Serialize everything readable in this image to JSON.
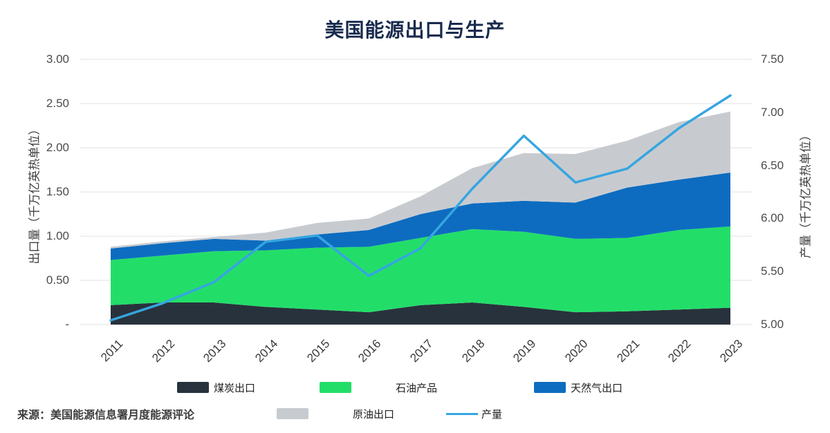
{
  "title": "美国能源出口与生产",
  "source_text": "来源：美国能源信息署月度能源评论",
  "legend": {
    "position": "bottom",
    "items": [
      {
        "label": "煤炭出口",
        "color": "#28323c",
        "type": "box"
      },
      {
        "label": "石油产品",
        "color": "#22de69",
        "type": "box"
      },
      {
        "label": "天然气出口",
        "color": "#0d6cc0",
        "type": "box"
      },
      {
        "label": "原油出口",
        "color": "#c7cbd0",
        "type": "box"
      },
      {
        "label": "产量",
        "color": "#36a5e0",
        "type": "line"
      }
    ]
  },
  "chart_data": {
    "type": "area",
    "subtype": "stacked-area-with-line",
    "title": "美国能源出口与生产",
    "grid": true,
    "categories": [
      2011,
      2012,
      2013,
      2014,
      2015,
      2016,
      2017,
      2018,
      2019,
      2020,
      2021,
      2022,
      2023
    ],
    "stacked_series": [
      {
        "name": "煤炭出口",
        "color": "#28323c",
        "values": [
          0.22,
          0.25,
          0.25,
          0.2,
          0.17,
          0.14,
          0.22,
          0.25,
          0.2,
          0.14,
          0.15,
          0.17,
          0.19
        ]
      },
      {
        "name": "石油产品",
        "color": "#22de69",
        "values": [
          0.51,
          0.53,
          0.58,
          0.64,
          0.7,
          0.74,
          0.76,
          0.83,
          0.85,
          0.83,
          0.83,
          0.9,
          0.92
        ]
      },
      {
        "name": "天然气出口",
        "color": "#0d6cc0",
        "values": [
          0.13,
          0.14,
          0.14,
          0.11,
          0.15,
          0.19,
          0.27,
          0.29,
          0.35,
          0.41,
          0.57,
          0.57,
          0.61
        ]
      },
      {
        "name": "原油出口",
        "color": "#c7cbd0",
        "values": [
          0.02,
          0.02,
          0.02,
          0.09,
          0.13,
          0.13,
          0.2,
          0.4,
          0.54,
          0.55,
          0.53,
          0.65,
          0.69
        ]
      }
    ],
    "line_series": {
      "name": "产量",
      "color": "#36a5e0",
      "axis": "right",
      "values": [
        5.04,
        5.2,
        5.4,
        5.78,
        5.84,
        5.46,
        5.72,
        6.28,
        6.78,
        6.34,
        6.47,
        6.85,
        7.16
      ]
    },
    "left_axis": {
      "label": "出口量（千万亿英热单位）",
      "min": 0,
      "max": 3.0,
      "tick_values": [
        3.0,
        2.5,
        2.0,
        1.5,
        1.0,
        0.5,
        0
      ],
      "tick_labels": [
        "3.00",
        "2.50",
        "2.00",
        "1.50",
        "1.00",
        "0.50",
        "-"
      ]
    },
    "right_axis": {
      "label": "产量（千万亿英热单位）",
      "min": 5.0,
      "max": 7.5,
      "tick_values": [
        7.5,
        7.0,
        6.5,
        6.0,
        5.5,
        5.0
      ],
      "tick_labels": [
        "7.50",
        "7.00",
        "6.50",
        "6.00",
        "5.50",
        "5.00"
      ]
    }
  }
}
